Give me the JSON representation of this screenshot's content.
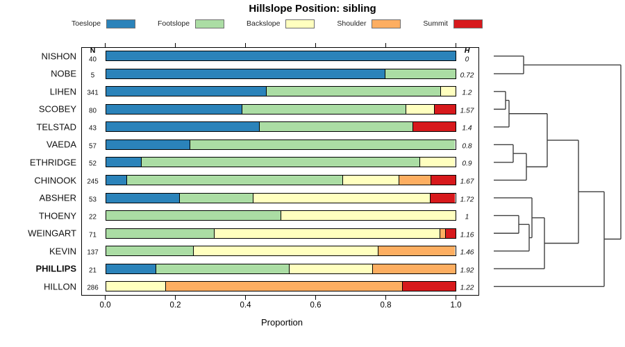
{
  "title": "Hillslope Position: sibling",
  "colors": {
    "Toeslope": "#2b83ba",
    "Footslope": "#abdda4",
    "Backslope": "#ffffbf",
    "Shoulder": "#fdae61",
    "Summit": "#d7191c",
    "bar_border": "#000000",
    "dendrogram_line": "#3f3f3f",
    "legend_swatch_border": "#6e6e6e"
  },
  "legend": {
    "items": [
      {
        "label": "Toeslope",
        "color": "#2b83ba"
      },
      {
        "label": "Footslope",
        "color": "#abdda4"
      },
      {
        "label": "Backslope",
        "color": "#ffffbf"
      },
      {
        "label": "Shoulder",
        "color": "#fdae61"
      },
      {
        "label": "Summit",
        "color": "#d7191c"
      }
    ]
  },
  "columns": {
    "n_header": "N",
    "h_header": "H"
  },
  "x_axis": {
    "label": "Proportion",
    "ticks": [
      "0.0",
      "0.2",
      "0.4",
      "0.6",
      "0.8",
      "1.0"
    ],
    "range": [
      0,
      1
    ]
  },
  "chart_data": {
    "type": "bar",
    "subtype": "horizontal-stacked-proportion-with-dendrogram",
    "title": "Hillslope Position: sibling",
    "xlabel": "Proportion",
    "xlim": [
      0,
      1
    ],
    "categories": [
      "Toeslope",
      "Footslope",
      "Backslope",
      "Shoulder",
      "Summit"
    ],
    "rows": [
      {
        "name": "NISHON",
        "n": 40,
        "h": "0",
        "bold": false,
        "values": [
          1.0,
          0,
          0,
          0,
          0
        ]
      },
      {
        "name": "NOBE",
        "n": 5,
        "h": "0.72",
        "bold": false,
        "values": [
          0.8,
          0.2,
          0,
          0,
          0
        ]
      },
      {
        "name": "LIHEN",
        "n": 341,
        "h": "1.2",
        "bold": false,
        "values": [
          0.46,
          0.5,
          0.04,
          0,
          0
        ]
      },
      {
        "name": "SCOBEY",
        "n": 80,
        "h": "1.57",
        "bold": false,
        "values": [
          0.39,
          0.47,
          0.08,
          0,
          0.06
        ]
      },
      {
        "name": "TELSTAD",
        "n": 43,
        "h": "1.4",
        "bold": false,
        "values": [
          0.44,
          0.44,
          0,
          0,
          0.12
        ]
      },
      {
        "name": "VAEDA",
        "n": 57,
        "h": "0.8",
        "bold": false,
        "values": [
          0.24,
          0.76,
          0,
          0,
          0
        ]
      },
      {
        "name": "ETHRIDGE",
        "n": 52,
        "h": "0.9",
        "bold": false,
        "values": [
          0.1,
          0.8,
          0.1,
          0,
          0
        ]
      },
      {
        "name": "CHINOOK",
        "n": 245,
        "h": "1.67",
        "bold": false,
        "values": [
          0.06,
          0.62,
          0.16,
          0.09,
          0.07
        ]
      },
      {
        "name": "ABSHER",
        "n": 53,
        "h": "1.72",
        "bold": false,
        "values": [
          0.21,
          0.21,
          0.51,
          0,
          0.07
        ]
      },
      {
        "name": "THOENY",
        "n": 22,
        "h": "1",
        "bold": false,
        "values": [
          0,
          0.5,
          0.5,
          0,
          0
        ]
      },
      {
        "name": "WEINGART",
        "n": 71,
        "h": "1.16",
        "bold": false,
        "values": [
          0,
          0.31,
          0.648,
          0.014,
          0.028
        ]
      },
      {
        "name": "KEVIN",
        "n": 137,
        "h": "1.46",
        "bold": false,
        "values": [
          0,
          0.25,
          0.53,
          0.22,
          0
        ]
      },
      {
        "name": "PHILLIPS",
        "n": 21,
        "h": "1.92",
        "bold": true,
        "values": [
          0.143,
          0.381,
          0.238,
          0.238,
          0
        ]
      },
      {
        "name": "HILLON",
        "n": 286,
        "h": "1.22",
        "bold": false,
        "values": [
          0,
          0,
          0.17,
          0.68,
          0.15
        ]
      }
    ],
    "dendrogram": {
      "leaf_x": 22,
      "nodes": [
        {
          "id": "A",
          "a": "L0",
          "b": "L1",
          "x": 65
        },
        {
          "id": "B",
          "a": "L2",
          "b": "L3",
          "x": 39
        },
        {
          "id": "C",
          "a": "B",
          "b": "L4",
          "x": 44
        },
        {
          "id": "D",
          "a": "L5",
          "b": "L6",
          "x": 50
        },
        {
          "id": "E",
          "a": "D",
          "b": "L7",
          "x": 69
        },
        {
          "id": "F",
          "a": "C",
          "b": "E",
          "x": 99
        },
        {
          "id": "G",
          "a": "L9",
          "b": "L10",
          "x": 58
        },
        {
          "id": "H1",
          "a": "G",
          "b": "L11",
          "x": 73
        },
        {
          "id": "I",
          "a": "L8",
          "b": "H1",
          "x": 77
        },
        {
          "id": "J",
          "a": "I",
          "b": "L12",
          "x": 95
        },
        {
          "id": "K",
          "a": "F",
          "b": "J",
          "x": 144
        },
        {
          "id": "L",
          "a": "K",
          "b": "L13",
          "x": 181
        },
        {
          "id": "R",
          "a": "A",
          "b": "L",
          "x": 205
        }
      ]
    }
  }
}
